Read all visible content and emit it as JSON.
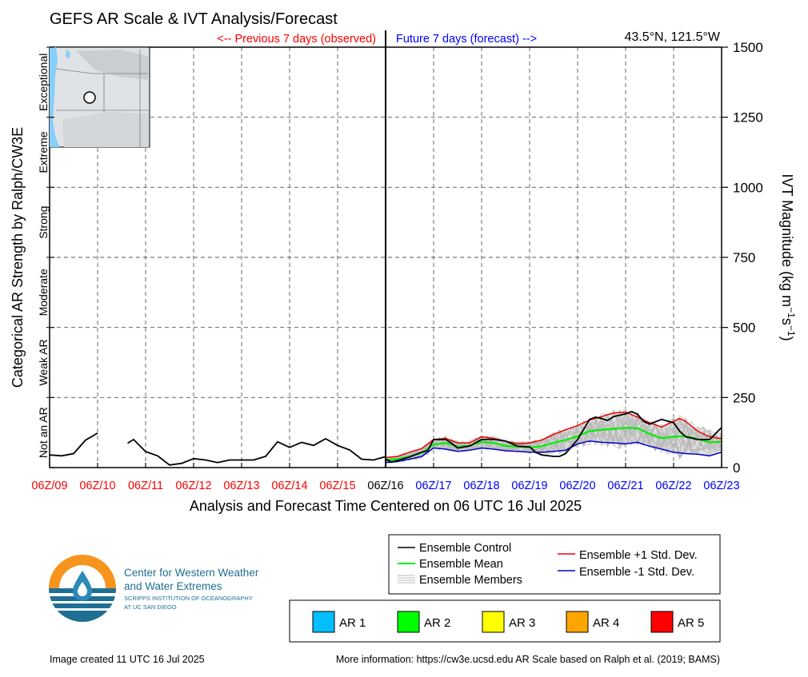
{
  "header": {
    "title": "GEFS AR Scale & IVT Analysis/Forecast",
    "previous_label": "<-- Previous 7 days (observed)",
    "future_label": "Future 7 days (forecast) -->",
    "location": "43.5°N, 121.5°W"
  },
  "axes": {
    "left_label": "Categorical AR Strength by Ralph/CW3E",
    "right_label_main": "IVT Magnitude (kg m",
    "right_label_sup1": "−1",
    "right_label_mid": "s",
    "right_label_sup2": "−1",
    "right_label_end": ")",
    "x_title": "Analysis and Forecast Time Centered on 06 UTC 16 Jul 2025"
  },
  "categories": [
    {
      "label": "Not an AR",
      "lo": 0,
      "hi": 250
    },
    {
      "label": "Weak AR",
      "lo": 250,
      "hi": 500
    },
    {
      "label": "Moderate",
      "lo": 500,
      "hi": 750
    },
    {
      "label": "Strong",
      "lo": 750,
      "hi": 1000
    },
    {
      "label": "Extreme",
      "lo": 1000,
      "hi": 1250
    },
    {
      "label": "Exceptional",
      "lo": 1250,
      "hi": 1500
    }
  ],
  "legend": {
    "control": "Ensemble Control",
    "mean": "Ensemble Mean",
    "members": "Ensemble Members",
    "plus": "Ensemble +1 Std. Dev.",
    "minus": "Ensemble -1 Std. Dev."
  },
  "ar_legend": [
    {
      "label": "AR 1",
      "color": "#00bfff"
    },
    {
      "label": "AR 2",
      "color": "#00ff00"
    },
    {
      "label": "AR 3",
      "color": "#ffff00"
    },
    {
      "label": "AR 4",
      "color": "#ffa500"
    },
    {
      "label": "AR 5",
      "color": "#ff0000"
    }
  ],
  "logo": {
    "line1": "Center for Western Weather",
    "line2": "and Water Extremes",
    "line3": "SCRIPPS INSTITUTION OF OCEANOGRAPHY",
    "line4": "AT UC SAN DIEGO"
  },
  "footer": {
    "created": "Image created 11 UTC 16 Jul 2025",
    "more_info": "More information: https://cw3e.ucsd.edu AR Scale based on Ralph et al. (2019; BAMS)"
  },
  "colors": {
    "observed": "#ff0000",
    "forecast": "#0000ff",
    "control": "#000000",
    "mean": "#00ee00",
    "plus": "#ee0000",
    "minus": "#0000cc",
    "members": "#b8b8b8",
    "spread": "#c8c8c8",
    "now_label": "#000000"
  },
  "chart_data": {
    "type": "line",
    "x_unit": "days relative to 06Z/16 Jul 2025",
    "xlim": [
      -7,
      7
    ],
    "ylim": [
      0,
      1500
    ],
    "y_ticks": [
      0,
      250,
      500,
      750,
      1000,
      1250,
      1500
    ],
    "grid": true,
    "x_ticks": [
      {
        "x": -7,
        "label": "06Z/09",
        "period": "observed"
      },
      {
        "x": -6,
        "label": "06Z/10",
        "period": "observed"
      },
      {
        "x": -5,
        "label": "06Z/11",
        "period": "observed"
      },
      {
        "x": -4,
        "label": "06Z/12",
        "period": "observed"
      },
      {
        "x": -3,
        "label": "06Z/13",
        "period": "observed"
      },
      {
        "x": -2,
        "label": "06Z/14",
        "period": "observed"
      },
      {
        "x": -1,
        "label": "06Z/15",
        "period": "observed"
      },
      {
        "x": 0,
        "label": "06Z/16",
        "period": "now"
      },
      {
        "x": 1,
        "label": "06Z/17",
        "period": "forecast"
      },
      {
        "x": 2,
        "label": "06Z/18",
        "period": "forecast"
      },
      {
        "x": 3,
        "label": "06Z/19",
        "period": "forecast"
      },
      {
        "x": 4,
        "label": "06Z/20",
        "period": "forecast"
      },
      {
        "x": 5,
        "label": "06Z/21",
        "period": "forecast"
      },
      {
        "x": 6,
        "label": "06Z/22",
        "period": "forecast"
      },
      {
        "x": 7,
        "label": "06Z/23",
        "period": "forecast"
      }
    ],
    "series": [
      {
        "name": "Ensemble Control",
        "role": "observed",
        "segments": [
          [
            [
              -7,
              45
            ],
            [
              -6.75,
              42
            ],
            [
              -6.5,
              50
            ],
            [
              -6.25,
              98
            ],
            [
              -6,
              123
            ]
          ],
          [
            [
              -5.375,
              87
            ],
            [
              -5.25,
              100
            ],
            [
              -5,
              57
            ],
            [
              -4.75,
              42
            ],
            [
              -4.5,
              9
            ],
            [
              -4.25,
              15
            ],
            [
              -4,
              32
            ],
            [
              -3.75,
              27
            ],
            [
              -3.5,
              18
            ],
            [
              -3.25,
              27
            ],
            [
              -3,
              27
            ],
            [
              -2.75,
              27
            ],
            [
              -2.5,
              40
            ],
            [
              -2.25,
              92
            ],
            [
              -2,
              72
            ],
            [
              -1.75,
              90
            ],
            [
              -1.5,
              79
            ],
            [
              -1.25,
              103
            ],
            [
              -1,
              79
            ],
            [
              -0.75,
              63
            ],
            [
              -0.5,
              30
            ],
            [
              -0.25,
              27
            ],
            [
              0,
              39
            ]
          ]
        ]
      },
      {
        "name": "Ensemble Control",
        "role": "control",
        "values": [
          [
            0,
            30
          ],
          [
            0.125,
            20
          ],
          [
            0.25,
            25
          ],
          [
            0.5,
            38
          ],
          [
            0.75,
            55
          ],
          [
            0.875,
            60
          ],
          [
            1,
            100
          ],
          [
            1.25,
            100
          ],
          [
            1.375,
            87
          ],
          [
            1.5,
            70
          ],
          [
            1.75,
            77
          ],
          [
            2,
            100
          ],
          [
            2.25,
            101
          ],
          [
            2.5,
            95
          ],
          [
            2.75,
            76
          ],
          [
            3,
            74
          ],
          [
            3.125,
            55
          ],
          [
            3.25,
            45
          ],
          [
            3.5,
            40
          ],
          [
            3.625,
            40
          ],
          [
            3.75,
            50
          ],
          [
            4,
            100
          ],
          [
            4.25,
            172
          ],
          [
            4.375,
            180
          ],
          [
            4.5,
            175
          ],
          [
            4.625,
            168
          ],
          [
            4.75,
            182
          ],
          [
            5,
            192
          ],
          [
            5.125,
            200
          ],
          [
            5.25,
            190
          ],
          [
            5.375,
            165
          ],
          [
            5.5,
            155
          ],
          [
            5.75,
            172
          ],
          [
            6,
            160
          ],
          [
            6.125,
            130
          ],
          [
            6.25,
            110
          ],
          [
            6.5,
            100
          ],
          [
            6.75,
            100
          ],
          [
            7,
            143
          ]
        ]
      },
      {
        "name": "Ensemble Mean",
        "role": "mean",
        "values": [
          [
            0,
            27
          ],
          [
            0.25,
            30
          ],
          [
            0.5,
            40
          ],
          [
            0.75,
            52
          ],
          [
            1,
            82
          ],
          [
            1.25,
            88
          ],
          [
            1.5,
            75
          ],
          [
            1.75,
            78
          ],
          [
            2,
            92
          ],
          [
            2.25,
            88
          ],
          [
            2.5,
            77
          ],
          [
            2.75,
            75
          ],
          [
            3,
            72
          ],
          [
            3.25,
            76
          ],
          [
            3.5,
            88
          ],
          [
            3.75,
            98
          ],
          [
            4,
            112
          ],
          [
            4.25,
            130
          ],
          [
            4.5,
            135
          ],
          [
            4.75,
            138
          ],
          [
            5,
            142
          ],
          [
            5.25,
            140
          ],
          [
            5.5,
            120
          ],
          [
            5.75,
            105
          ],
          [
            6,
            110
          ],
          [
            6.25,
            112
          ],
          [
            6.5,
            102
          ],
          [
            6.75,
            90
          ],
          [
            7,
            92
          ]
        ]
      },
      {
        "name": "Ensemble +1 Std. Dev.",
        "role": "plus",
        "values": [
          [
            0,
            36
          ],
          [
            0.25,
            40
          ],
          [
            0.5,
            55
          ],
          [
            0.75,
            68
          ],
          [
            1,
            100
          ],
          [
            1.25,
            104
          ],
          [
            1.5,
            88
          ],
          [
            1.75,
            88
          ],
          [
            2,
            110
          ],
          [
            2.25,
            104
          ],
          [
            2.5,
            94
          ],
          [
            2.75,
            85
          ],
          [
            3,
            88
          ],
          [
            3.25,
            98
          ],
          [
            3.5,
            118
          ],
          [
            3.75,
            135
          ],
          [
            4,
            150
          ],
          [
            4.25,
            170
          ],
          [
            4.5,
            182
          ],
          [
            4.75,
            195
          ],
          [
            5,
            198
          ],
          [
            5.25,
            180
          ],
          [
            5.5,
            160
          ],
          [
            5.75,
            145
          ],
          [
            6,
            165
          ],
          [
            6.125,
            175
          ],
          [
            6.25,
            165
          ],
          [
            6.5,
            130
          ],
          [
            6.75,
            110
          ],
          [
            7,
            103
          ]
        ]
      },
      {
        "name": "Ensemble -1 Std. Dev.",
        "role": "minus",
        "values": [
          [
            0,
            18
          ],
          [
            0.25,
            22
          ],
          [
            0.5,
            30
          ],
          [
            0.75,
            40
          ],
          [
            1,
            70
          ],
          [
            1.25,
            66
          ],
          [
            1.5,
            58
          ],
          [
            1.75,
            62
          ],
          [
            2,
            70
          ],
          [
            2.25,
            66
          ],
          [
            2.5,
            60
          ],
          [
            2.75,
            58
          ],
          [
            3,
            55
          ],
          [
            3.25,
            55
          ],
          [
            3.5,
            58
          ],
          [
            3.75,
            62
          ],
          [
            4,
            85
          ],
          [
            4.25,
            95
          ],
          [
            4.5,
            90
          ],
          [
            4.75,
            88
          ],
          [
            5,
            85
          ],
          [
            5.25,
            90
          ],
          [
            5.5,
            76
          ],
          [
            5.75,
            66
          ],
          [
            6,
            55
          ],
          [
            6.25,
            50
          ],
          [
            6.5,
            48
          ],
          [
            6.75,
            42
          ],
          [
            7,
            55
          ]
        ]
      }
    ],
    "location_marker": {
      "lat": 43.5,
      "lon": -121.5
    }
  }
}
